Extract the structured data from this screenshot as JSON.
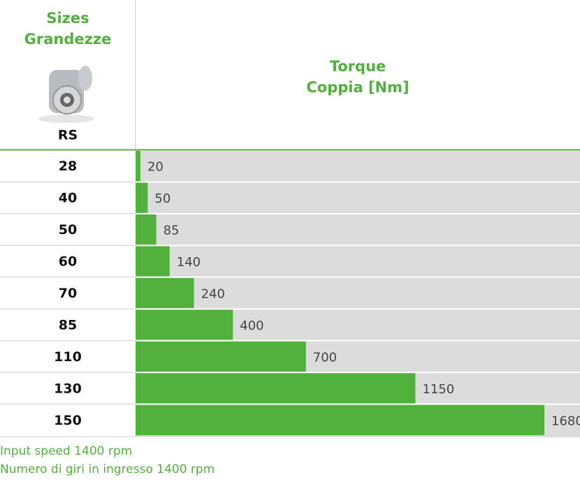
{
  "chart_data": {
    "type": "bar",
    "orientation": "horizontal",
    "size_header": [
      "Sizes",
      "Grandezze"
    ],
    "model": "RS",
    "value_header": [
      "Torque",
      "Coppia  [Nm]"
    ],
    "categories": [
      "28",
      "40",
      "50",
      "60",
      "70",
      "85",
      "110",
      "130",
      "150"
    ],
    "values": [
      20,
      50,
      85,
      140,
      240,
      400,
      700,
      1150,
      1680
    ],
    "xlim": [
      0,
      1680
    ],
    "color": "#52b03c",
    "background": "#dcdcdc",
    "notes": [
      "Input speed 1400 rpm",
      "Numero di giri in ingresso 1400 rpm"
    ]
  }
}
